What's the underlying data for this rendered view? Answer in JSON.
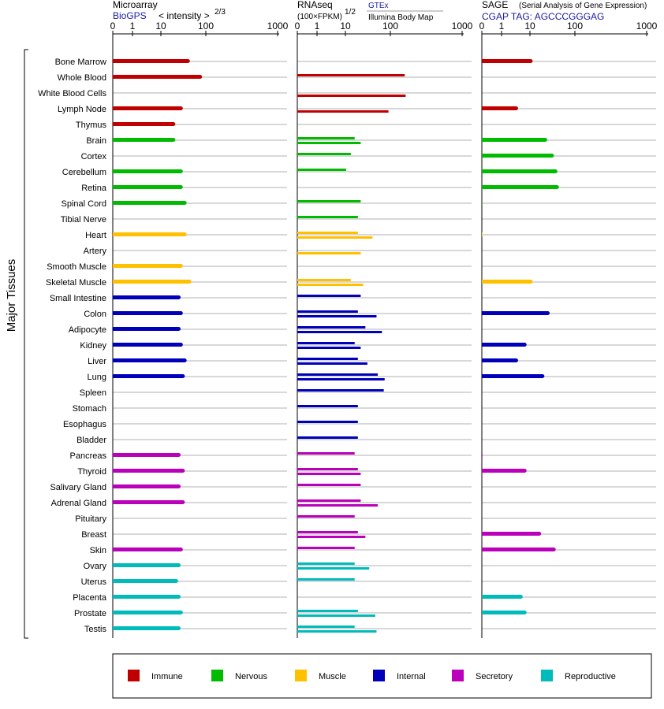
{
  "title_y": "Major Tissues",
  "colors": {
    "Immune": "#c00000",
    "Nervous": "#00bb00",
    "Muscle": "#ffc000",
    "Internal": "#0000bb",
    "Secretory": "#bb00bb",
    "Reproductive": "#00bbbb"
  },
  "panels": [
    {
      "title": "Microarray",
      "source": "BioGPS",
      "axis_note": "< intensity >",
      "axis_exp": "2/3"
    },
    {
      "title": "RNAseq",
      "axis_note": "(100×FPKM)",
      "axis_exp": "1/2",
      "source_top": "GTEx",
      "source_bottom": "Illumina Body Map"
    },
    {
      "title": "SAGE",
      "subtitle": "(Serial Analysis of Gene Expression)",
      "source": "CGAP TAG: AGCCCGGGAG"
    }
  ],
  "legend": [
    "Immune",
    "Nervous",
    "Muscle",
    "Internal",
    "Secretory",
    "Reproductive"
  ],
  "chart_data": {
    "type": "bar",
    "xscale": "log (tick 0 at origin)",
    "xticks": [
      "0",
      "1",
      "10",
      "100",
      "1000"
    ],
    "grid": true,
    "legend_position": "bottom",
    "categories": [
      "Bone Marrow",
      "Whole Blood",
      "White Blood Cells",
      "Lymph Node",
      "Thymus",
      "Brain",
      "Cortex",
      "Cerebellum",
      "Retina",
      "Spinal Cord",
      "Tibial Nerve",
      "Heart",
      "Artery",
      "Smooth Muscle",
      "Skeletal Muscle",
      "Small Intestine",
      "Colon",
      "Adipocyte",
      "Kidney",
      "Liver",
      "Lung",
      "Spleen",
      "Stomach",
      "Esophagus",
      "Bladder",
      "Pancreas",
      "Thyroid",
      "Salivary Gland",
      "Adrenal Gland",
      "Pituitary",
      "Breast",
      "Skin",
      "Ovary",
      "Uterus",
      "Placenta",
      "Prostate",
      "Testis"
    ],
    "groups": [
      "Immune",
      "Immune",
      "Immune",
      "Immune",
      "Immune",
      "Nervous",
      "Nervous",
      "Nervous",
      "Nervous",
      "Nervous",
      "Nervous",
      "Muscle",
      "Muscle",
      "Muscle",
      "Muscle",
      "Internal",
      "Internal",
      "Internal",
      "Internal",
      "Internal",
      "Internal",
      "Internal",
      "Internal",
      "Internal",
      "Internal",
      "Secretory",
      "Secretory",
      "Secretory",
      "Secretory",
      "Secretory",
      "Secretory",
      "Secretory",
      "Reproductive",
      "Reproductive",
      "Reproductive",
      "Reproductive",
      "Reproductive"
    ],
    "series": [
      {
        "name": "Microarray",
        "values": [
          14,
          25,
          null,
          10,
          7,
          7,
          null,
          10,
          10,
          12,
          null,
          12,
          null,
          10,
          15,
          9,
          10,
          9,
          10,
          12,
          11,
          null,
          null,
          null,
          null,
          9,
          11,
          9,
          11,
          null,
          null,
          10,
          9,
          8,
          9,
          10,
          9
        ]
      },
      {
        "name": "GTEx",
        "values": [
          null,
          65,
          null,
          null,
          null,
          6,
          5,
          4,
          null,
          8,
          7,
          7,
          null,
          null,
          5,
          8,
          7,
          10,
          6,
          7,
          18,
          24,
          7,
          7,
          7,
          6,
          7,
          8,
          8,
          6,
          7,
          6,
          6,
          6,
          null,
          7,
          6
        ]
      },
      {
        "name": "Illumina Body Map",
        "values": [
          null,
          null,
          68,
          30,
          null,
          8,
          null,
          null,
          null,
          null,
          null,
          14,
          8,
          null,
          9,
          null,
          17,
          22,
          8,
          11,
          25,
          null,
          null,
          null,
          null,
          null,
          8,
          null,
          18,
          null,
          10,
          null,
          12,
          null,
          null,
          16,
          17
        ]
      },
      {
        "name": "SAGE",
        "values": [
          4,
          null,
          null,
          2,
          null,
          8,
          11,
          13,
          14,
          0.02,
          null,
          0.01,
          null,
          null,
          4,
          null,
          9,
          null,
          3,
          2,
          7,
          null,
          null,
          null,
          null,
          0.02,
          3,
          null,
          null,
          null,
          6,
          12,
          null,
          null,
          2.5,
          3,
          null
        ]
      }
    ]
  }
}
